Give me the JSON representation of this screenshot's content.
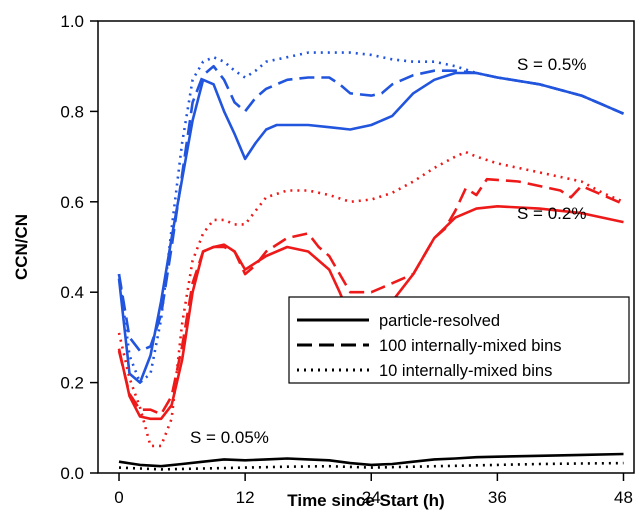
{
  "chart_data": {
    "type": "line",
    "xlabel": "Time since Start (h)",
    "ylabel": "CCN/CN",
    "xlim": [
      -2,
      49
    ],
    "ylim": [
      0,
      1.0
    ],
    "x_ticks": [
      0,
      12,
      24,
      36,
      48
    ],
    "x_tick_labels": [
      "0",
      "12",
      "24",
      "36",
      "48"
    ],
    "y_ticks": [
      0.0,
      0.2,
      0.4,
      0.6,
      0.8,
      1.0
    ],
    "y_tick_labels": [
      "0.0",
      "0.2",
      "0.4",
      "0.6",
      "0.8",
      "1.0"
    ],
    "grid": false,
    "legend_position": "lower-right",
    "legend": [
      {
        "label": "particle-resolved",
        "style": "solid"
      },
      {
        "label": "100 internally-mixed bins",
        "style": "dashed"
      },
      {
        "label": "10 internally-mixed bins",
        "style": "dotted"
      }
    ],
    "annotations": [
      {
        "text": "S = 0.5%",
        "x": 43,
        "y": 0.87
      },
      {
        "text": "S = 0.2%",
        "x": 43,
        "y": 0.56
      },
      {
        "text": "S = 0.05%",
        "x": 10,
        "y": 0.075
      }
    ],
    "colors": {
      "S = 0.5%": "#2255dd",
      "S = 0.2%": "#ee1a1a",
      "S = 0.05%": "#000000"
    },
    "series": [
      {
        "group": "S = 0.5%",
        "style": "solid",
        "points": [
          [
            0,
            0.43
          ],
          [
            1,
            0.22
          ],
          [
            2,
            0.2
          ],
          [
            3,
            0.26
          ],
          [
            4,
            0.38
          ],
          [
            5,
            0.52
          ],
          [
            6,
            0.65
          ],
          [
            7,
            0.78
          ],
          [
            8,
            0.87
          ],
          [
            9,
            0.86
          ],
          [
            10,
            0.8
          ],
          [
            11,
            0.75
          ],
          [
            12,
            0.695
          ],
          [
            13,
            0.73
          ],
          [
            14,
            0.76
          ],
          [
            15,
            0.77
          ],
          [
            18,
            0.77
          ],
          [
            20,
            0.765
          ],
          [
            22,
            0.76
          ],
          [
            24,
            0.77
          ],
          [
            26,
            0.79
          ],
          [
            28,
            0.84
          ],
          [
            30,
            0.87
          ],
          [
            32,
            0.885
          ],
          [
            34,
            0.885
          ],
          [
            36,
            0.875
          ],
          [
            40,
            0.86
          ],
          [
            44,
            0.835
          ],
          [
            46,
            0.815
          ],
          [
            48,
            0.795
          ]
        ]
      },
      {
        "group": "S = 0.5%",
        "style": "dashed",
        "points": [
          [
            0,
            0.44
          ],
          [
            1,
            0.3
          ],
          [
            2,
            0.27
          ],
          [
            3,
            0.28
          ],
          [
            4,
            0.35
          ],
          [
            5,
            0.5
          ],
          [
            6,
            0.66
          ],
          [
            7,
            0.82
          ],
          [
            8,
            0.88
          ],
          [
            9,
            0.9
          ],
          [
            10,
            0.87
          ],
          [
            11,
            0.82
          ],
          [
            12,
            0.8
          ],
          [
            13,
            0.83
          ],
          [
            14,
            0.85
          ],
          [
            16,
            0.87
          ],
          [
            18,
            0.875
          ],
          [
            20,
            0.875
          ],
          [
            21,
            0.86
          ],
          [
            22,
            0.84
          ],
          [
            24,
            0.835
          ],
          [
            25,
            0.84
          ],
          [
            26,
            0.86
          ],
          [
            28,
            0.88
          ],
          [
            30,
            0.89
          ],
          [
            32,
            0.89
          ],
          [
            34,
            0.885
          ],
          [
            36,
            0.875
          ],
          [
            40,
            0.86
          ],
          [
            44,
            0.835
          ],
          [
            46,
            0.815
          ],
          [
            48,
            0.795
          ]
        ]
      },
      {
        "group": "S = 0.5%",
        "style": "dotted",
        "points": [
          [
            0,
            0.44
          ],
          [
            1,
            0.26
          ],
          [
            2,
            0.2
          ],
          [
            3,
            0.22
          ],
          [
            4,
            0.34
          ],
          [
            5,
            0.54
          ],
          [
            6,
            0.73
          ],
          [
            7,
            0.87
          ],
          [
            8,
            0.91
          ],
          [
            9,
            0.92
          ],
          [
            10,
            0.91
          ],
          [
            11,
            0.89
          ],
          [
            12,
            0.875
          ],
          [
            13,
            0.89
          ],
          [
            14,
            0.91
          ],
          [
            16,
            0.92
          ],
          [
            18,
            0.93
          ],
          [
            22,
            0.93
          ],
          [
            24,
            0.925
          ],
          [
            26,
            0.915
          ],
          [
            28,
            0.91
          ],
          [
            30,
            0.91
          ],
          [
            32,
            0.9
          ],
          [
            34,
            0.885
          ],
          [
            36,
            0.875
          ],
          [
            40,
            0.86
          ],
          [
            44,
            0.835
          ],
          [
            46,
            0.815
          ],
          [
            48,
            0.795
          ]
        ]
      },
      {
        "group": "S = 0.2%",
        "style": "solid",
        "points": [
          [
            0,
            0.275
          ],
          [
            1,
            0.17
          ],
          [
            2,
            0.125
          ],
          [
            3,
            0.12
          ],
          [
            4,
            0.12
          ],
          [
            5,
            0.15
          ],
          [
            6,
            0.25
          ],
          [
            7,
            0.4
          ],
          [
            8,
            0.49
          ],
          [
            9,
            0.5
          ],
          [
            10,
            0.505
          ],
          [
            11,
            0.49
          ],
          [
            12,
            0.45
          ],
          [
            13,
            0.465
          ],
          [
            14,
            0.48
          ],
          [
            16,
            0.5
          ],
          [
            18,
            0.49
          ],
          [
            20,
            0.45
          ],
          [
            21,
            0.4
          ],
          [
            22,
            0.345
          ],
          [
            23,
            0.335
          ],
          [
            24,
            0.34
          ],
          [
            26,
            0.38
          ],
          [
            28,
            0.44
          ],
          [
            30,
            0.52
          ],
          [
            32,
            0.565
          ],
          [
            34,
            0.585
          ],
          [
            36,
            0.59
          ],
          [
            40,
            0.585
          ],
          [
            44,
            0.575
          ],
          [
            46,
            0.565
          ],
          [
            48,
            0.555
          ]
        ]
      },
      {
        "group": "S = 0.2%",
        "style": "dashed",
        "points": [
          [
            0,
            0.27
          ],
          [
            1,
            0.175
          ],
          [
            2,
            0.14
          ],
          [
            3,
            0.14
          ],
          [
            4,
            0.13
          ],
          [
            5,
            0.17
          ],
          [
            6,
            0.28
          ],
          [
            7,
            0.42
          ],
          [
            8,
            0.49
          ],
          [
            9,
            0.5
          ],
          [
            10,
            0.5
          ],
          [
            11,
            0.49
          ],
          [
            12,
            0.44
          ],
          [
            13,
            0.46
          ],
          [
            14,
            0.49
          ],
          [
            16,
            0.52
          ],
          [
            18,
            0.53
          ],
          [
            19,
            0.5
          ],
          [
            20,
            0.48
          ],
          [
            21,
            0.44
          ],
          [
            22,
            0.4
          ],
          [
            24,
            0.4
          ],
          [
            26,
            0.42
          ],
          [
            28,
            0.44
          ],
          [
            29,
            0.48
          ],
          [
            30,
            0.52
          ],
          [
            31,
            0.54
          ],
          [
            32,
            0.58
          ],
          [
            33,
            0.63
          ],
          [
            34,
            0.615
          ],
          [
            35,
            0.65
          ],
          [
            38,
            0.645
          ],
          [
            40,
            0.635
          ],
          [
            42,
            0.625
          ],
          [
            43,
            0.61
          ],
          [
            44,
            0.635
          ],
          [
            46,
            0.615
          ],
          [
            48,
            0.595
          ]
        ]
      },
      {
        "group": "S = 0.2%",
        "style": "dotted",
        "points": [
          [
            0,
            0.31
          ],
          [
            1,
            0.21
          ],
          [
            2,
            0.145
          ],
          [
            3,
            0.06
          ],
          [
            4,
            0.06
          ],
          [
            5,
            0.12
          ],
          [
            6,
            0.33
          ],
          [
            7,
            0.47
          ],
          [
            8,
            0.53
          ],
          [
            9,
            0.56
          ],
          [
            10,
            0.56
          ],
          [
            11,
            0.55
          ],
          [
            12,
            0.55
          ],
          [
            13,
            0.58
          ],
          [
            14,
            0.61
          ],
          [
            16,
            0.625
          ],
          [
            18,
            0.625
          ],
          [
            20,
            0.615
          ],
          [
            22,
            0.6
          ],
          [
            24,
            0.605
          ],
          [
            26,
            0.62
          ],
          [
            28,
            0.645
          ],
          [
            30,
            0.675
          ],
          [
            32,
            0.7
          ],
          [
            33,
            0.71
          ],
          [
            34,
            0.7
          ],
          [
            36,
            0.685
          ],
          [
            40,
            0.665
          ],
          [
            44,
            0.645
          ],
          [
            46,
            0.62
          ],
          [
            48,
            0.6
          ]
        ]
      },
      {
        "group": "S = 0.05%",
        "style": "solid",
        "points": [
          [
            0,
            0.025
          ],
          [
            2,
            0.018
          ],
          [
            4,
            0.015
          ],
          [
            6,
            0.02
          ],
          [
            8,
            0.025
          ],
          [
            10,
            0.03
          ],
          [
            12,
            0.028
          ],
          [
            14,
            0.03
          ],
          [
            16,
            0.032
          ],
          [
            18,
            0.03
          ],
          [
            20,
            0.028
          ],
          [
            22,
            0.022
          ],
          [
            24,
            0.018
          ],
          [
            26,
            0.02
          ],
          [
            28,
            0.025
          ],
          [
            30,
            0.03
          ],
          [
            32,
            0.032
          ],
          [
            34,
            0.035
          ],
          [
            36,
            0.036
          ],
          [
            40,
            0.038
          ],
          [
            44,
            0.04
          ],
          [
            48,
            0.042
          ]
        ]
      },
      {
        "group": "S = 0.05%",
        "style": "dotted",
        "points": [
          [
            0,
            0.012
          ],
          [
            4,
            0.008
          ],
          [
            8,
            0.01
          ],
          [
            12,
            0.012
          ],
          [
            16,
            0.014
          ],
          [
            20,
            0.015
          ],
          [
            24,
            0.012
          ],
          [
            28,
            0.014
          ],
          [
            32,
            0.016
          ],
          [
            36,
            0.018
          ],
          [
            40,
            0.02
          ],
          [
            44,
            0.021
          ],
          [
            48,
            0.022
          ]
        ]
      }
    ]
  }
}
